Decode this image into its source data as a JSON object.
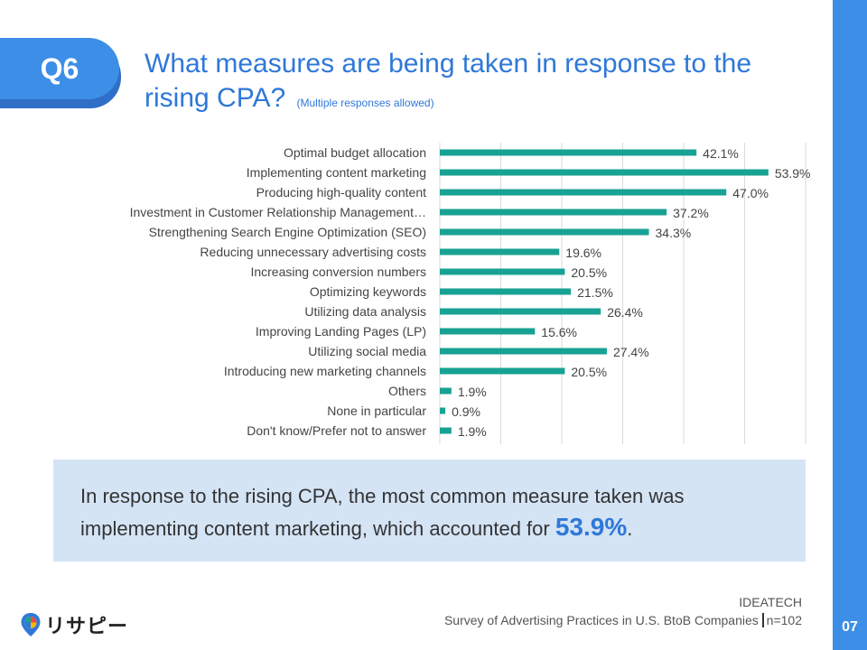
{
  "badge": "Q6",
  "title": {
    "main": "What measures are being taken in response to the rising CPA?",
    "sub": "(Multiple responses allowed)"
  },
  "chart_data": {
    "type": "bar",
    "orientation": "horizontal",
    "categories": [
      "Optimal budget allocation",
      "Implementing content marketing",
      "Producing high-quality content",
      "Investment in Customer Relationship Management…",
      "Strengthening Search Engine Optimization (SEO)",
      "Reducing unnecessary advertising costs",
      "Increasing conversion numbers",
      "Optimizing keywords",
      "Utilizing data analysis",
      "Improving Landing Pages (LP)",
      "Utilizing social media",
      "Introducing new marketing channels",
      "Others",
      "None in particular",
      "Don't know/Prefer not to answer"
    ],
    "values": [
      42.1,
      53.9,
      47.0,
      37.2,
      34.3,
      19.6,
      20.5,
      21.5,
      26.4,
      15.6,
      27.4,
      20.5,
      1.9,
      0.9,
      1.9
    ],
    "value_labels": [
      "42.1%",
      "53.9%",
      "47.0%",
      "37.2%",
      "34.3%",
      "19.6%",
      "20.5%",
      "21.5%",
      "26.4%",
      "15.6%",
      "27.4%",
      "20.5%",
      "1.9%",
      "0.9%",
      "1.9%"
    ],
    "xlim": [
      0,
      60
    ],
    "grid": true,
    "bar_color": "#17a293"
  },
  "summary": {
    "text_before": "In response to the rising CPA, the most common measure taken was implementing content marketing, which accounted for ",
    "highlight": "53.9%",
    "text_after": "."
  },
  "source": {
    "company": "IDEATECH",
    "survey": "Survey of Advertising Practices in U.S. BtoB Companies",
    "sample": "n=102"
  },
  "logo": {
    "text": "リサピー"
  },
  "page_number": "07"
}
